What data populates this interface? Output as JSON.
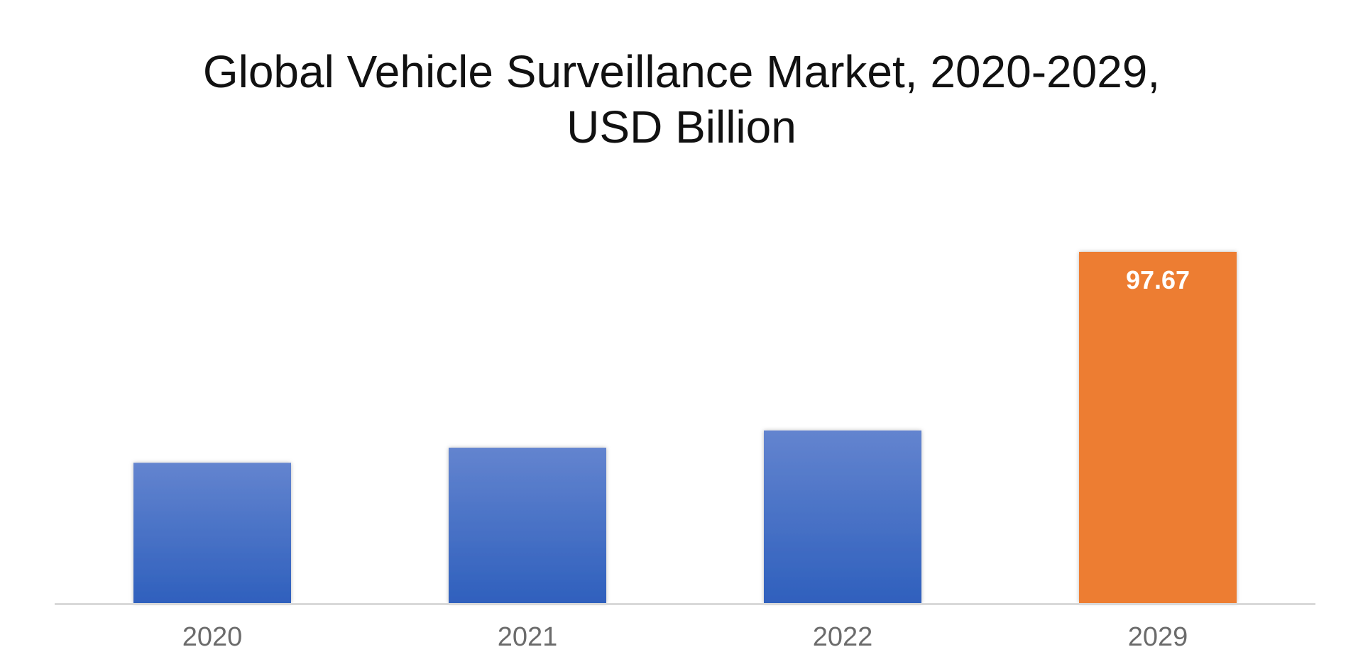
{
  "chart_data": {
    "type": "bar",
    "title_lines": [
      "Global Vehicle Surveillance Market, 2020-2029,",
      "USD Billion"
    ],
    "categories": [
      "2020",
      "2021",
      "2022",
      "2029"
    ],
    "values": [
      39.0,
      43.2,
      48.0,
      97.67
    ],
    "data_labels": [
      "",
      "",
      "",
      "97.67"
    ],
    "xlabel": "",
    "ylabel": "",
    "ylim": [
      0,
      100
    ],
    "grid": false,
    "legend": "none",
    "colors": {
      "bar_gradient_top": "#6384cf",
      "bar_gradient_bottom": "#2f60bd",
      "highlight_bar": "#ed7d31",
      "baseline": "#d9d9d9"
    },
    "highlight_index": 3
  }
}
